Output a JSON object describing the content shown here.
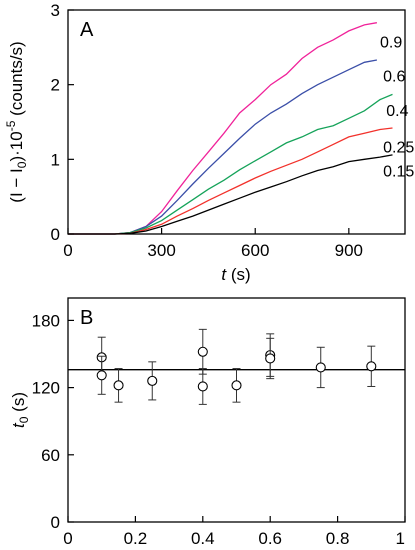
{
  "chart_data": [
    {
      "panel": "A",
      "type": "line",
      "xlabel_var": "t",
      "xlabel_unit": " (s)",
      "ylabel_a": "(I",
      "ylabel_b": " − I",
      "ylabel_sub": "0",
      "ylabel_c": ")·10",
      "ylabel_exp": "-5",
      "ylabel_d": " (counts/s)",
      "xlim": [
        0,
        1080
      ],
      "ylim": [
        0,
        3
      ],
      "xticks": [
        0,
        300,
        600,
        900
      ],
      "xtick_labels": [
        "0",
        "300",
        "600",
        "900"
      ],
      "yticks": [
        0,
        1,
        2,
        3
      ],
      "ytick_labels": [
        "0",
        "1",
        "2",
        "3"
      ],
      "series": [
        {
          "name": "0.9",
          "color": "#f0239a",
          "label_at": [
            1000,
            2.58
          ],
          "x": [
            0,
            150,
            200,
            250,
            300,
            350,
            400,
            450,
            500,
            550,
            600,
            650,
            700,
            750,
            800,
            850,
            900,
            950,
            990
          ],
          "y": [
            0,
            0,
            0.02,
            0.1,
            0.3,
            0.58,
            0.85,
            1.1,
            1.35,
            1.62,
            1.8,
            2.0,
            2.14,
            2.35,
            2.5,
            2.6,
            2.72,
            2.8,
            2.83
          ]
        },
        {
          "name": "0.6",
          "color": "#3b4fa8",
          "label_at": [
            1010,
            2.12
          ],
          "x": [
            0,
            150,
            200,
            250,
            300,
            350,
            400,
            450,
            500,
            550,
            600,
            650,
            700,
            750,
            800,
            850,
            900,
            950,
            990
          ],
          "y": [
            0,
            0,
            0.02,
            0.1,
            0.24,
            0.45,
            0.67,
            0.88,
            1.08,
            1.28,
            1.47,
            1.62,
            1.74,
            1.88,
            2.0,
            2.1,
            2.2,
            2.3,
            2.33
          ]
        },
        {
          "name": "0.4",
          "color": "#16a35a",
          "label_at": [
            1020,
            1.66
          ],
          "x": [
            0,
            150,
            200,
            250,
            300,
            350,
            400,
            450,
            500,
            550,
            600,
            650,
            700,
            750,
            800,
            850,
            900,
            950,
            1000,
            1040
          ],
          "y": [
            0,
            0,
            0.02,
            0.08,
            0.18,
            0.32,
            0.46,
            0.6,
            0.72,
            0.86,
            0.98,
            1.1,
            1.22,
            1.3,
            1.4,
            1.45,
            1.55,
            1.65,
            1.8,
            1.87
          ]
        },
        {
          "name": "0.25",
          "color": "#f2312b",
          "label_at": [
            1010,
            1.17
          ],
          "x": [
            0,
            150,
            200,
            250,
            300,
            350,
            400,
            450,
            500,
            550,
            600,
            650,
            700,
            750,
            800,
            850,
            900,
            950,
            1000,
            1040
          ],
          "y": [
            0,
            0,
            0.01,
            0.06,
            0.13,
            0.24,
            0.34,
            0.45,
            0.55,
            0.65,
            0.75,
            0.84,
            0.92,
            1.0,
            1.1,
            1.2,
            1.3,
            1.35,
            1.4,
            1.42
          ]
        },
        {
          "name": "0.15",
          "color": "#000000",
          "label_at": [
            1010,
            0.85
          ],
          "x": [
            0,
            150,
            200,
            250,
            300,
            350,
            400,
            450,
            500,
            550,
            600,
            650,
            700,
            750,
            800,
            850,
            900,
            950,
            1000,
            1040
          ],
          "y": [
            0,
            0,
            0.01,
            0.04,
            0.1,
            0.17,
            0.24,
            0.32,
            0.4,
            0.48,
            0.56,
            0.63,
            0.7,
            0.78,
            0.85,
            0.9,
            0.97,
            1.0,
            1.03,
            1.06
          ]
        }
      ]
    },
    {
      "panel": "B",
      "type": "scatter",
      "ylabel_var": "t",
      "ylabel_sub": "0",
      "ylabel_unit": " (s)",
      "xlim": [
        0,
        1
      ],
      "ylim": [
        0,
        200
      ],
      "xticks": [
        0,
        0.2,
        0.4,
        0.6,
        0.8,
        1
      ],
      "xtick_labels": [
        "0",
        "0.2",
        "0.4",
        "0.6",
        "0.8",
        "1"
      ],
      "yticks": [
        0,
        60,
        120,
        180
      ],
      "ytick_labels": [
        "0",
        "60",
        "120",
        "180"
      ],
      "hline": 136,
      "points": [
        {
          "x": 0.1,
          "y": 147,
          "err": 18
        },
        {
          "x": 0.1,
          "y": 131,
          "err": 17
        },
        {
          "x": 0.15,
          "y": 122,
          "err": 15
        },
        {
          "x": 0.25,
          "y": 126,
          "err": 17
        },
        {
          "x": 0.4,
          "y": 152,
          "err": 20
        },
        {
          "x": 0.4,
          "y": 121,
          "err": 16
        },
        {
          "x": 0.5,
          "y": 122,
          "err": 15
        },
        {
          "x": 0.6,
          "y": 149,
          "err": 19
        },
        {
          "x": 0.6,
          "y": 146,
          "err": 18
        },
        {
          "x": 0.75,
          "y": 138,
          "err": 18
        },
        {
          "x": 0.9,
          "y": 139,
          "err": 18
        }
      ]
    }
  ]
}
